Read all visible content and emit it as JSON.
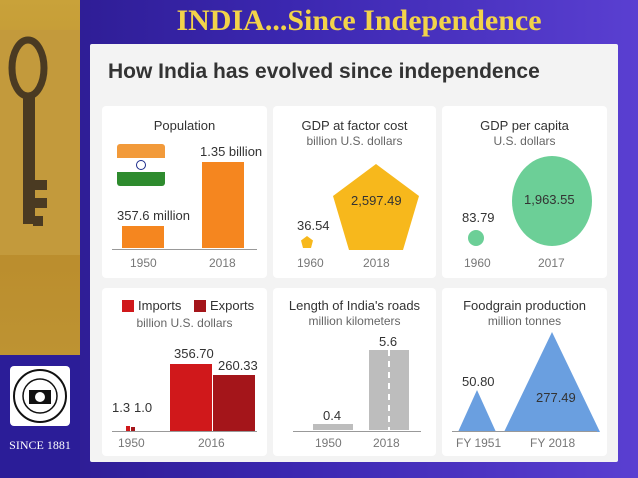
{
  "slide": {
    "title": "INDIA...Since Independence",
    "since": "SINCE 1881"
  },
  "seal": {
    "text": "THE AMERICAN COLLEGE · MADURAI"
  },
  "infographic": {
    "title": "How India has evolved since independence",
    "population": {
      "title": "Population",
      "v1950": "357.6 million",
      "v2018": "1.35 billion",
      "x1": "1950",
      "x2": "2018",
      "values_millions": [
        357.6,
        1350
      ]
    },
    "gdp": {
      "title": "GDP at factor cost",
      "subtitle": "billion U.S. dollars",
      "v1": "36.54",
      "v2": "2,597.49",
      "x1": "1960",
      "x2": "2018"
    },
    "gdppc": {
      "title": "GDP per capita",
      "subtitle": "U.S. dollars",
      "v1": "83.79",
      "v2": "1,963.55",
      "x1": "1960",
      "x2": "2017"
    },
    "trade": {
      "imports": "Imports",
      "exports": "Exports",
      "subtitle": "billion U.S. dollars",
      "i1": "1.3",
      "e1": "1.0",
      "i2": "356.70",
      "e2": "260.33",
      "x1": "1950",
      "x2": "2016"
    },
    "roads": {
      "title": "Length of India's roads",
      "subtitle": "million kilometers",
      "v1": "0.4",
      "v2": "5.6",
      "x1": "1950",
      "x2": "2018"
    },
    "food": {
      "title": "Foodgrain production",
      "subtitle": "million tonnes",
      "v1": "50.80",
      "v2": "277.49",
      "x1": "FY 1951",
      "x2": "FY 2018"
    }
  },
  "colors": {
    "orange": "#f5861f",
    "yellow": "#f7b81c",
    "green": "#6ccf97",
    "red": "#d0181b",
    "darkred": "#a4151a",
    "grey": "#bdbdbd",
    "blue": "#6a9fe0"
  }
}
